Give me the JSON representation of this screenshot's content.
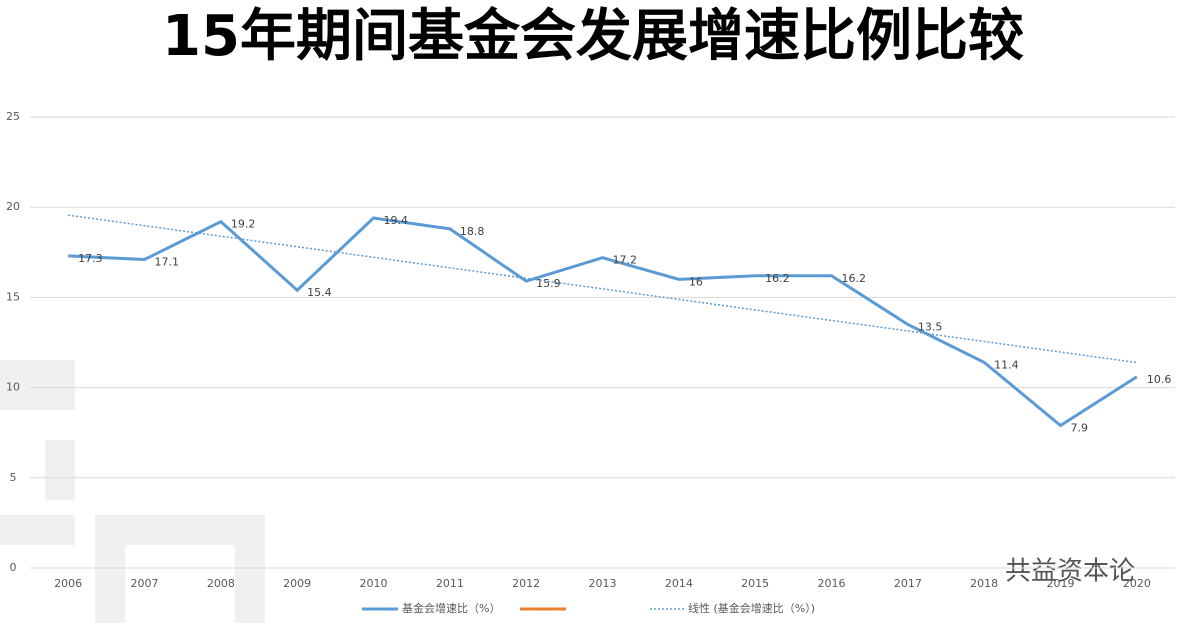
{
  "chart_data": {
    "type": "line",
    "title": "15年期间基金会发展增速比例比较",
    "categories": [
      "2006",
      "2007",
      "2008",
      "2009",
      "2010",
      "2011",
      "2012",
      "2013",
      "2014",
      "2015",
      "2016",
      "2017",
      "2018",
      "2019",
      "2020"
    ],
    "series": [
      {
        "name": "基金会增速比（%）",
        "color": "#5b9bd5",
        "values": [
          17.3,
          17.1,
          19.2,
          15.4,
          19.4,
          18.8,
          15.9,
          17.2,
          16,
          16.2,
          16.2,
          13.5,
          11.4,
          7.9,
          10.6
        ]
      }
    ],
    "trendline": {
      "name": "线性 (基金会增速比（%）)",
      "color": "#5b9bd5"
    },
    "ylim": [
      0,
      25
    ],
    "yticks": [
      0,
      5,
      10,
      15,
      20,
      25
    ],
    "grid": true,
    "watermark": "共益资本论"
  }
}
